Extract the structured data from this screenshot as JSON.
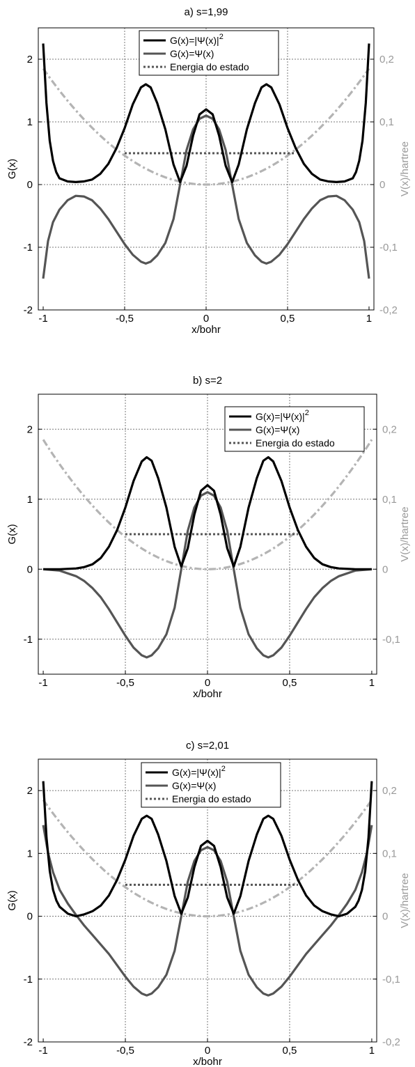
{
  "chart_data": [
    {
      "type": "line",
      "title": "a) s=1,99",
      "xlabel": "x/bohr",
      "ylabel": "G(x)",
      "y2label": "V(x)/hartree",
      "xlim": [
        -1.03,
        1.03
      ],
      "ylim": [
        -2,
        2.5
      ],
      "y2lim": [
        -0.2,
        0.25
      ],
      "xticks": [
        -1,
        -0.5,
        0,
        0.5,
        1
      ],
      "xticklabels": [
        "-1",
        "-0,5",
        "0",
        "0,5",
        "1"
      ],
      "yticks": [
        -2,
        -1,
        0,
        1,
        2
      ],
      "yticklabels": [
        "-2",
        "-1",
        "0",
        "1",
        "2"
      ],
      "y2ticks": [
        -0.2,
        -0.1,
        0,
        0.1,
        0.2
      ],
      "y2ticklabels": [
        "-0,2",
        "-0,1",
        "0",
        "0,1",
        "0,2"
      ],
      "grid": true,
      "legend_position": "top-center",
      "legend": [
        {
          "label": "G(x)=|Ψ(x)|",
          "sup": "2",
          "color": "#000000",
          "style": "solid"
        },
        {
          "label": "G(x)=Ψ(x)",
          "sup": "",
          "color": "#555555",
          "style": "solid"
        },
        {
          "label": "Energia do estado",
          "sup": "",
          "color": "#555555",
          "style": "dotted"
        }
      ],
      "series": [
        {
          "x": [
            -1,
            -0.98,
            -0.96,
            -0.94,
            -0.92,
            -0.9,
            -0.85,
            -0.8,
            -0.75,
            -0.7,
            -0.65,
            -0.6,
            -0.55,
            -0.5,
            -0.45,
            -0.4,
            -0.37,
            -0.34,
            -0.3,
            -0.25,
            -0.2,
            -0.16,
            -0.12,
            -0.08,
            -0.04,
            0,
            0.04,
            0.08,
            0.12,
            0.16,
            0.2,
            0.25,
            0.3,
            0.34,
            0.37,
            0.4,
            0.45,
            0.5,
            0.55,
            0.6,
            0.65,
            0.7,
            0.75,
            0.8,
            0.85,
            0.9,
            0.92,
            0.94,
            0.96,
            0.98,
            1
          ],
          "y": [
            2.25,
            1.3,
            0.7,
            0.38,
            0.2,
            0.1,
            0.05,
            0.04,
            0.05,
            0.08,
            0.17,
            0.33,
            0.58,
            0.9,
            1.28,
            1.55,
            1.6,
            1.55,
            1.3,
            0.88,
            0.32,
            0.04,
            0.3,
            0.78,
            1.12,
            1.2,
            1.12,
            0.78,
            0.3,
            0.04,
            0.32,
            0.88,
            1.3,
            1.55,
            1.6,
            1.55,
            1.28,
            0.9,
            0.58,
            0.33,
            0.17,
            0.08,
            0.05,
            0.04,
            0.05,
            0.1,
            0.2,
            0.38,
            0.7,
            1.3,
            2.25
          ],
          "color": "#000000",
          "dash": "",
          "width": 3.2
        },
        {
          "x": [
            -1,
            -0.97,
            -0.94,
            -0.9,
            -0.85,
            -0.8,
            -0.75,
            -0.7,
            -0.65,
            -0.6,
            -0.55,
            -0.5,
            -0.45,
            -0.4,
            -0.37,
            -0.34,
            -0.3,
            -0.25,
            -0.2,
            -0.16,
            -0.12,
            -0.08,
            -0.04,
            0,
            0.04,
            0.08,
            0.12,
            0.16,
            0.2,
            0.25,
            0.3,
            0.34,
            0.37,
            0.4,
            0.45,
            0.5,
            0.55,
            0.6,
            0.65,
            0.7,
            0.75,
            0.8,
            0.85,
            0.9,
            0.94,
            0.97,
            1
          ],
          "y": [
            -1.5,
            -0.9,
            -0.6,
            -0.4,
            -0.25,
            -0.18,
            -0.19,
            -0.25,
            -0.38,
            -0.55,
            -0.75,
            -0.95,
            -1.12,
            -1.23,
            -1.26,
            -1.23,
            -1.13,
            -0.93,
            -0.55,
            0.0,
            0.55,
            0.88,
            1.05,
            1.1,
            1.05,
            0.88,
            0.55,
            0.0,
            -0.55,
            -0.93,
            -1.13,
            -1.23,
            -1.26,
            -1.23,
            -1.12,
            -0.95,
            -0.75,
            -0.55,
            -0.38,
            -0.25,
            -0.19,
            -0.18,
            -0.25,
            -0.4,
            -0.6,
            -0.9,
            -1.5
          ],
          "color": "#555555",
          "dash": "",
          "width": 3.2
        },
        {
          "x": [
            -1,
            1
          ],
          "y": [
            0.5,
            0.5
          ],
          "axis": "left",
          "xrange": [
            -0.5,
            0.55
          ],
          "color": "#555555",
          "dash": "3,3",
          "width": 3
        },
        {
          "potential": true,
          "axis": "right",
          "k": 0.185,
          "color": "#b4b4b4",
          "dash": "10,4,3,4",
          "width": 3.2
        }
      ]
    },
    {
      "type": "line",
      "title": "b) s=2",
      "xlabel": "x/bohr",
      "ylabel": "G(x)",
      "y2label": "V(x)/hartree",
      "xlim": [
        -1.03,
        1.03
      ],
      "ylim": [
        -1.5,
        2.5
      ],
      "y2lim": [
        -0.15,
        0.25
      ],
      "xticks": [
        -1,
        -0.5,
        0,
        0.5,
        1
      ],
      "xticklabels": [
        "-1",
        "-0,5",
        "0",
        "0,5",
        "1"
      ],
      "yticks": [
        -1,
        0,
        1,
        2
      ],
      "yticklabels": [
        "-1",
        "0",
        "1",
        "2"
      ],
      "y2ticks": [
        -0.1,
        0,
        0.1,
        0.2
      ],
      "y2ticklabels": [
        "-0,1",
        "0",
        "0,1",
        "0,2"
      ],
      "grid": true,
      "legend_position": "top-right",
      "legend": [
        {
          "label": "G(x)=|Ψ(x)|",
          "sup": "2",
          "color": "#000000",
          "style": "solid"
        },
        {
          "label": "G(x)=Ψ(x)",
          "sup": "",
          "color": "#555555",
          "style": "solid"
        },
        {
          "label": "Energia do estado",
          "sup": "",
          "color": "#555555",
          "style": "dotted"
        }
      ],
      "series": [
        {
          "x": [
            -1,
            -0.9,
            -0.8,
            -0.75,
            -0.7,
            -0.65,
            -0.6,
            -0.55,
            -0.5,
            -0.45,
            -0.4,
            -0.37,
            -0.34,
            -0.3,
            -0.25,
            -0.2,
            -0.16,
            -0.12,
            -0.08,
            -0.04,
            0,
            0.04,
            0.08,
            0.12,
            0.16,
            0.2,
            0.25,
            0.3,
            0.34,
            0.37,
            0.4,
            0.45,
            0.5,
            0.55,
            0.6,
            0.65,
            0.7,
            0.75,
            0.8,
            0.9,
            1
          ],
          "y": [
            0.0,
            0.0,
            0.01,
            0.03,
            0.07,
            0.16,
            0.32,
            0.56,
            0.88,
            1.26,
            1.54,
            1.6,
            1.55,
            1.3,
            0.88,
            0.32,
            0.04,
            0.3,
            0.78,
            1.12,
            1.2,
            1.12,
            0.78,
            0.3,
            0.04,
            0.32,
            0.88,
            1.3,
            1.55,
            1.6,
            1.54,
            1.26,
            0.88,
            0.56,
            0.32,
            0.16,
            0.07,
            0.03,
            0.01,
            0.0,
            0.0
          ],
          "color": "#000000",
          "dash": "",
          "width": 3.2
        },
        {
          "x": [
            -1,
            -0.9,
            -0.8,
            -0.75,
            -0.7,
            -0.65,
            -0.6,
            -0.55,
            -0.5,
            -0.45,
            -0.4,
            -0.37,
            -0.34,
            -0.3,
            -0.25,
            -0.2,
            -0.16,
            -0.12,
            -0.08,
            -0.04,
            0,
            0.04,
            0.08,
            0.12,
            0.16,
            0.2,
            0.25,
            0.3,
            0.34,
            0.37,
            0.4,
            0.45,
            0.5,
            0.55,
            0.6,
            0.65,
            0.7,
            0.75,
            0.8,
            0.9,
            1
          ],
          "y": [
            0.0,
            -0.02,
            -0.1,
            -0.17,
            -0.27,
            -0.4,
            -0.57,
            -0.76,
            -0.95,
            -1.12,
            -1.23,
            -1.26,
            -1.23,
            -1.13,
            -0.93,
            -0.55,
            0.0,
            0.55,
            0.88,
            1.05,
            1.1,
            1.05,
            0.88,
            0.55,
            0.0,
            -0.55,
            -0.93,
            -1.13,
            -1.23,
            -1.26,
            -1.23,
            -1.12,
            -0.95,
            -0.76,
            -0.57,
            -0.4,
            -0.27,
            -0.17,
            -0.1,
            -0.02,
            0.0
          ],
          "color": "#555555",
          "dash": "",
          "width": 3.2
        },
        {
          "x": [
            -1,
            1
          ],
          "y": [
            0.5,
            0.5
          ],
          "axis": "left",
          "xrange": [
            -0.5,
            0.55
          ],
          "color": "#555555",
          "dash": "3,3",
          "width": 3
        },
        {
          "potential": true,
          "axis": "right",
          "k": 0.185,
          "color": "#b4b4b4",
          "dash": "10,4,3,4",
          "width": 3.2
        }
      ]
    },
    {
      "type": "line",
      "title": "c) s=2,01",
      "xlabel": "x/bohr",
      "ylabel": "G(x)",
      "y2label": "V(x)/hartree",
      "xlim": [
        -1.03,
        1.03
      ],
      "ylim": [
        -2,
        2.5
      ],
      "y2lim": [
        -0.2,
        0.25
      ],
      "xticks": [
        -1,
        -0.5,
        0,
        0.5,
        1
      ],
      "xticklabels": [
        "-1",
        "-0,5",
        "0",
        "0,5",
        "1"
      ],
      "yticks": [
        -2,
        -1,
        0,
        1,
        2
      ],
      "yticklabels": [
        "-2",
        "-1",
        "0",
        "1",
        "2"
      ],
      "y2ticks": [
        -0.2,
        -0.1,
        0,
        0.1,
        0.2
      ],
      "y2ticklabels": [
        "-0,2",
        "-0,1",
        "0",
        "0,1",
        "0,2"
      ],
      "grid": true,
      "legend_position": "top-center",
      "legend": [
        {
          "label": "G(x)=|Ψ(x)|",
          "sup": "2",
          "color": "#000000",
          "style": "solid"
        },
        {
          "label": "G(x)=Ψ(x)",
          "sup": "",
          "color": "#555555",
          "style": "solid"
        },
        {
          "label": "Energia do estado",
          "sup": "",
          "color": "#555555",
          "style": "dotted"
        }
      ],
      "series": [
        {
          "x": [
            -1,
            -0.98,
            -0.96,
            -0.94,
            -0.92,
            -0.9,
            -0.85,
            -0.8,
            -0.75,
            -0.7,
            -0.65,
            -0.6,
            -0.55,
            -0.5,
            -0.45,
            -0.4,
            -0.37,
            -0.34,
            -0.3,
            -0.25,
            -0.2,
            -0.16,
            -0.12,
            -0.08,
            -0.04,
            0,
            0.04,
            0.08,
            0.12,
            0.16,
            0.2,
            0.25,
            0.3,
            0.34,
            0.37,
            0.4,
            0.45,
            0.5,
            0.55,
            0.6,
            0.65,
            0.7,
            0.75,
            0.8,
            0.85,
            0.9,
            0.92,
            0.94,
            0.96,
            0.98,
            1
          ],
          "y": [
            2.15,
            1.25,
            0.72,
            0.42,
            0.25,
            0.15,
            0.04,
            0.0,
            0.03,
            0.08,
            0.17,
            0.33,
            0.58,
            0.9,
            1.28,
            1.55,
            1.6,
            1.55,
            1.3,
            0.88,
            0.32,
            0.04,
            0.3,
            0.78,
            1.12,
            1.2,
            1.12,
            0.78,
            0.3,
            0.04,
            0.32,
            0.88,
            1.3,
            1.55,
            1.6,
            1.55,
            1.28,
            0.9,
            0.58,
            0.33,
            0.17,
            0.08,
            0.03,
            0.0,
            0.04,
            0.15,
            0.25,
            0.42,
            0.72,
            1.25,
            2.15
          ],
          "color": "#000000",
          "dash": "",
          "width": 3.2
        },
        {
          "x": [
            -1,
            -0.97,
            -0.94,
            -0.9,
            -0.85,
            -0.8,
            -0.75,
            -0.7,
            -0.65,
            -0.6,
            -0.55,
            -0.5,
            -0.45,
            -0.4,
            -0.37,
            -0.34,
            -0.3,
            -0.25,
            -0.2,
            -0.16,
            -0.12,
            -0.08,
            -0.04,
            0,
            0.04,
            0.08,
            0.12,
            0.16,
            0.2,
            0.25,
            0.3,
            0.34,
            0.37,
            0.4,
            0.45,
            0.5,
            0.55,
            0.6,
            0.65,
            0.7,
            0.75,
            0.8,
            0.85,
            0.9,
            0.94,
            0.97,
            1
          ],
          "y": [
            1.45,
            1.0,
            0.7,
            0.42,
            0.2,
            0.02,
            -0.15,
            -0.3,
            -0.45,
            -0.6,
            -0.78,
            -0.96,
            -1.12,
            -1.23,
            -1.26,
            -1.23,
            -1.13,
            -0.93,
            -0.55,
            0.0,
            0.55,
            0.88,
            1.05,
            1.1,
            1.05,
            0.88,
            0.55,
            0.0,
            -0.55,
            -0.93,
            -1.13,
            -1.23,
            -1.26,
            -1.23,
            -1.12,
            -0.96,
            -0.78,
            -0.6,
            -0.45,
            -0.3,
            -0.15,
            0.02,
            0.2,
            0.42,
            0.7,
            1.0,
            1.45
          ],
          "color": "#555555",
          "dash": "",
          "width": 3.2
        },
        {
          "x": [
            -1,
            1
          ],
          "y": [
            0.5,
            0.5
          ],
          "axis": "left",
          "xrange": [
            -0.5,
            0.55
          ],
          "color": "#555555",
          "dash": "3,3",
          "width": 3
        },
        {
          "potential": true,
          "axis": "right",
          "k": 0.185,
          "color": "#b4b4b4",
          "dash": "10,4,3,4",
          "width": 3.2
        }
      ]
    }
  ]
}
